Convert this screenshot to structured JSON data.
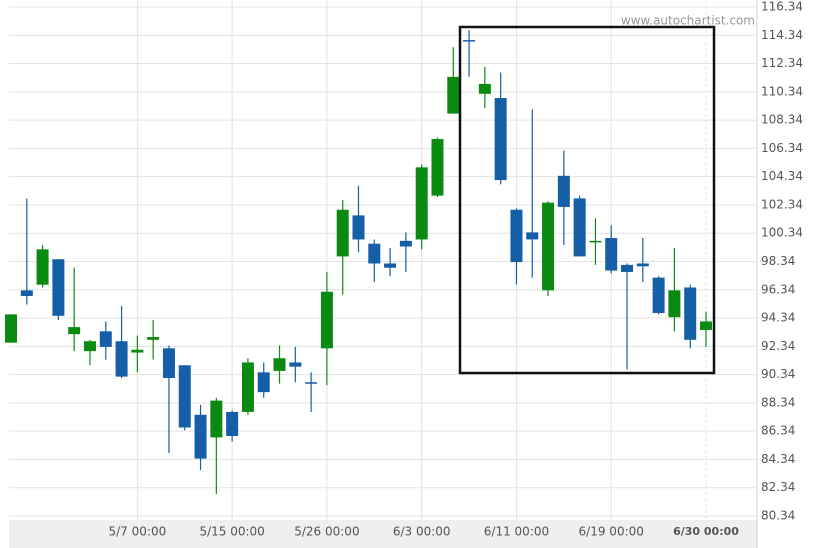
{
  "chart_data": {
    "type": "candlestick",
    "watermark": "www.autochartist.com",
    "categories": [
      null,
      null,
      null,
      null,
      null,
      null,
      null,
      null,
      "5/7 00:00",
      null,
      null,
      null,
      null,
      null,
      "5/15 00:00",
      null,
      null,
      null,
      null,
      null,
      "5/26 00:00",
      null,
      null,
      null,
      null,
      null,
      "6/3 00:00",
      null,
      null,
      null,
      null,
      null,
      "6/11 00:00",
      null,
      null,
      null,
      null,
      null,
      "6/19 00:00",
      null,
      null,
      null,
      null,
      null,
      "6/30 00:00"
    ],
    "open": [
      92.6,
      96.3,
      96.7,
      98.5,
      93.2,
      92.0,
      93.4,
      92.7,
      91.9,
      92.8,
      92.2,
      91.0,
      87.5,
      85.9,
      87.7,
      87.7,
      90.5,
      90.6,
      91.2,
      89.8,
      92.2,
      98.7,
      101.6,
      99.6,
      98.2,
      99.8,
      99.9,
      103.0,
      108.8,
      114.0,
      110.2,
      109.9,
      102.0,
      100.4,
      96.3,
      104.4,
      102.8,
      99.7,
      100.0,
      98.1,
      98.2,
      97.2,
      94.4,
      96.5,
      93.5
    ],
    "high": [
      94.6,
      102.8,
      99.5,
      98.5,
      97.9,
      92.8,
      94.1,
      95.2,
      93.1,
      94.2,
      92.4,
      91.0,
      88.2,
      88.7,
      87.8,
      91.5,
      91.2,
      92.4,
      92.3,
      90.5,
      97.6,
      102.7,
      103.7,
      99.9,
      99.3,
      100.4,
      105.2,
      107.1,
      113.5,
      114.7,
      112.1,
      111.7,
      102.1,
      109.1,
      102.6,
      106.2,
      103.0,
      101.4,
      100.9,
      98.2,
      100.0,
      97.3,
      99.3,
      96.7,
      94.8
    ],
    "low": [
      92.6,
      95.3,
      96.5,
      94.2,
      92.0,
      91.0,
      91.4,
      90.1,
      90.5,
      91.4,
      84.8,
      86.4,
      83.6,
      81.9,
      85.6,
      87.5,
      88.7,
      89.7,
      89.8,
      87.7,
      89.6,
      96.0,
      99.0,
      96.9,
      97.3,
      97.6,
      99.2,
      102.9,
      108.8,
      111.4,
      109.2,
      103.8,
      96.7,
      97.2,
      95.9,
      99.5,
      98.7,
      98.1,
      97.5,
      90.7,
      96.9,
      94.6,
      93.4,
      92.2,
      92.3
    ],
    "close": [
      94.6,
      95.9,
      99.2,
      94.5,
      93.7,
      92.7,
      92.3,
      90.2,
      92.1,
      93.0,
      90.1,
      86.6,
      84.4,
      88.5,
      86.0,
      91.2,
      89.1,
      91.5,
      90.9,
      89.7,
      96.2,
      102.0,
      99.9,
      98.2,
      97.9,
      99.4,
      105.0,
      107.0,
      111.4,
      113.9,
      110.9,
      104.1,
      98.3,
      99.9,
      102.5,
      102.2,
      98.7,
      99.8,
      97.7,
      97.6,
      98.0,
      94.7,
      96.3,
      92.8,
      94.1
    ],
    "up_color": "#0b8a12",
    "down_color": "#155fa6",
    "ylim": [
      80.34,
      116.34
    ],
    "yticks": [
      80.34,
      82.34,
      84.34,
      86.34,
      88.34,
      90.34,
      92.34,
      94.34,
      96.34,
      98.34,
      100.34,
      102.34,
      104.34,
      106.34,
      108.34,
      110.34,
      112.34,
      114.34,
      116.34
    ],
    "grid": true
  }
}
